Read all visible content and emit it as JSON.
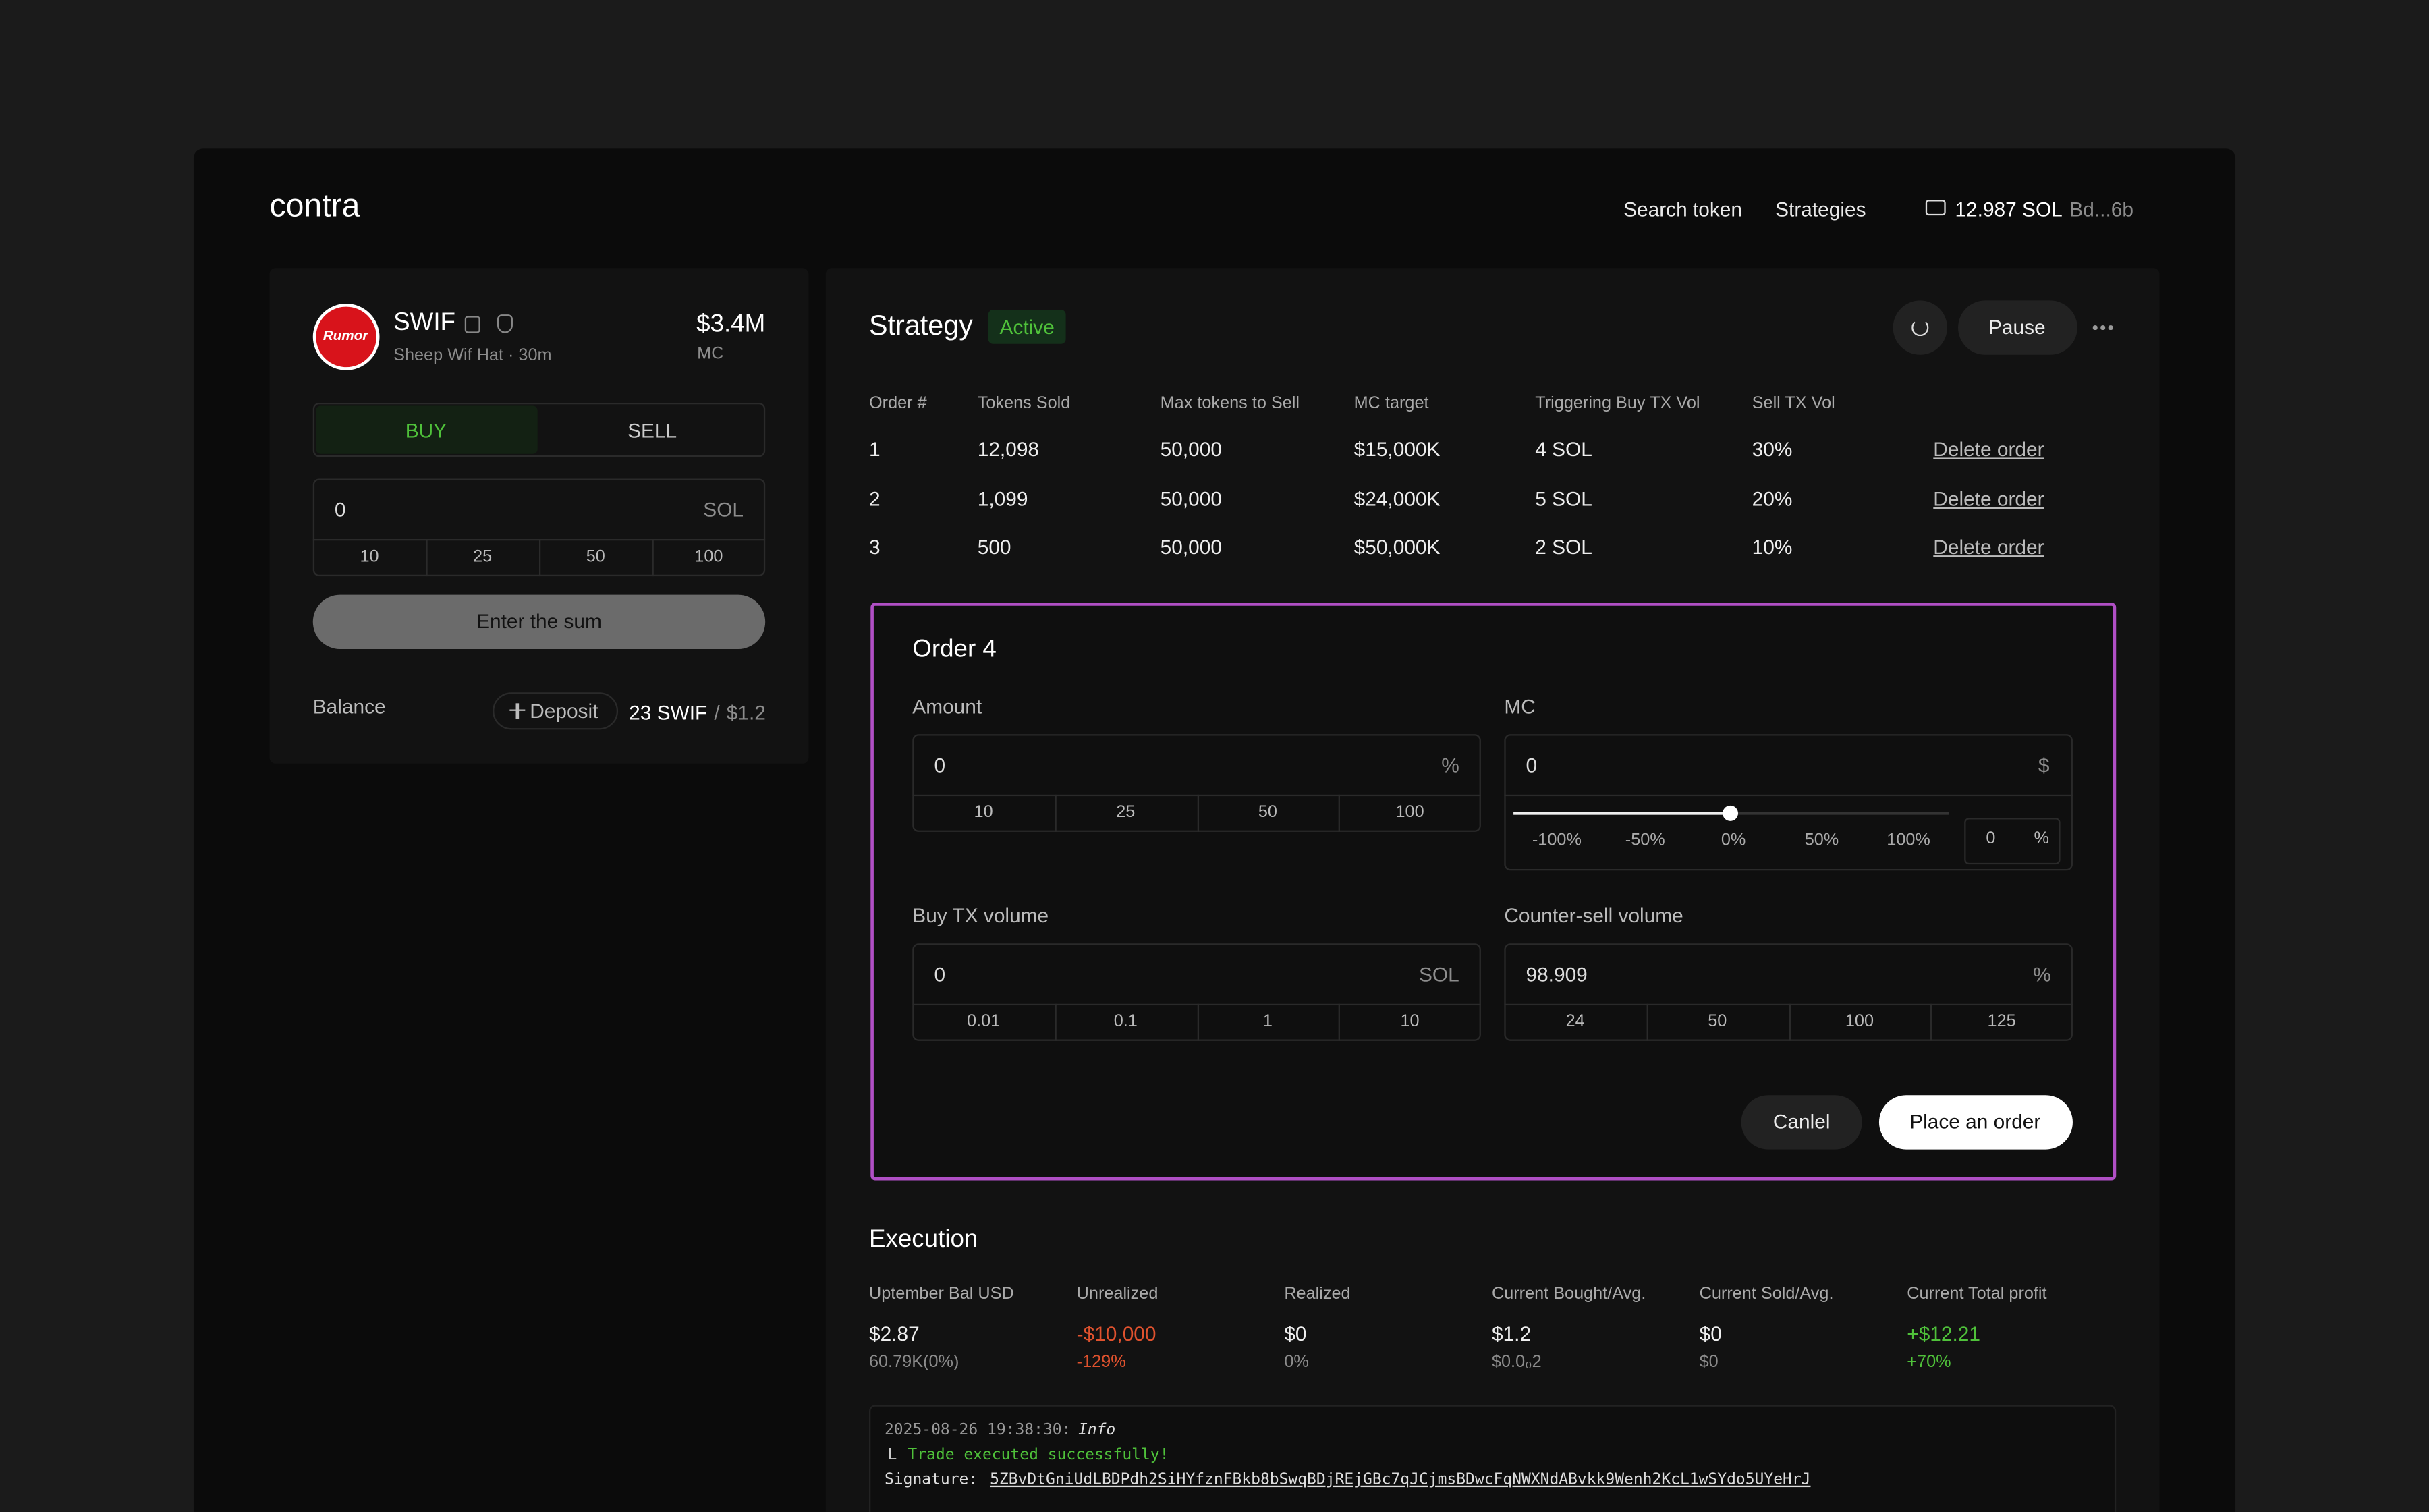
{
  "header": {
    "brand": "contra",
    "nav": [
      "Search token",
      "Strategies"
    ],
    "wallet_balance": "12.987 SOL",
    "wallet_address": "Bd...6b"
  },
  "token": {
    "logo_text": "Rumor",
    "symbol": "SWIF",
    "subtitle": "Sheep Wif Hat · 30m",
    "mc_value": "$3.4M",
    "mc_label": "MC"
  },
  "trade": {
    "tabs": [
      "BUY",
      "SELL"
    ],
    "amount": "0",
    "unit": "SOL",
    "presets": [
      "10",
      "25",
      "50",
      "100"
    ],
    "button": "Enter the sum",
    "balance_label": "Balance",
    "deposit": "Deposit",
    "balance_amount": "23 SWIF",
    "balance_separator": "/",
    "balance_usd": "$1.2"
  },
  "strategy": {
    "title": "Strategy",
    "status": "Active",
    "pause": "Pause",
    "columns": [
      "Order #",
      "Tokens Sold",
      "Max tokens to Sell",
      "MC target",
      "Triggering Buy TX Vol",
      "Sell TX Vol"
    ],
    "rows": [
      {
        "cells": [
          "1",
          "12,098",
          "50,000",
          "$15,000K",
          "4 SOL",
          "30%"
        ],
        "action": "Delete order"
      },
      {
        "cells": [
          "2",
          "1,099",
          "50,000",
          "$24,000K",
          "5 SOL",
          "20%"
        ],
        "action": "Delete order"
      },
      {
        "cells": [
          "3",
          "500",
          "50,000",
          "$50,000K",
          "2 SOL",
          "10%"
        ],
        "action": "Delete order"
      }
    ]
  },
  "order_form": {
    "title": "Order 4",
    "amount": {
      "label": "Amount",
      "value": "0",
      "unit": "%",
      "presets": [
        "10",
        "25",
        "50",
        "100"
      ]
    },
    "mc": {
      "label": "MC",
      "value": "0",
      "unit": "$",
      "slider_labels": [
        "-100%",
        "-50%",
        "0%",
        "50%",
        "100%"
      ],
      "pct_value": "0",
      "pct_unit": "%"
    },
    "buy_tx": {
      "label": "Buy TX volume",
      "value": "0",
      "unit": "SOL",
      "presets": [
        "0.01",
        "0.1",
        "1",
        "10"
      ]
    },
    "counter_sell": {
      "label": "Counter-sell volume",
      "value": "98.909",
      "unit": "%",
      "presets": [
        "24",
        "50",
        "100",
        "125"
      ]
    },
    "cancel": "Canlel",
    "submit": "Place an order"
  },
  "execution": {
    "title": "Execution",
    "metrics": [
      {
        "label": "Uptember Bal USD",
        "value": "$2.87",
        "sub": "60.79K(0%)"
      },
      {
        "label": "Unrealized",
        "value": "-$10,000",
        "sub": "-129%"
      },
      {
        "label": "Realized",
        "value": "$0",
        "sub": "0%"
      },
      {
        "label": "Current Bought/Avg.",
        "value": "$1.2",
        "sub": "$0.0₀2"
      },
      {
        "label": "Current Sold/Avg.",
        "value": "$0",
        "sub": "$0"
      },
      {
        "label": "Current Total profit",
        "value": "+$12.21",
        "sub": "+70%"
      }
    ]
  },
  "log": {
    "timestamp": "2025-08-26 19:38:30:",
    "level": "Info",
    "prefix": "L",
    "message": "Trade executed successfully!",
    "signature_label": "Signature:",
    "signature": "5ZBvDtGniUdLBDPdh2SiHYfznFBkb8bSwqBDjREjGBc7qJCjmsBDwcFqNWXNdABvkk9Wenh2KcL1wSYdo5UYeHrJ"
  }
}
